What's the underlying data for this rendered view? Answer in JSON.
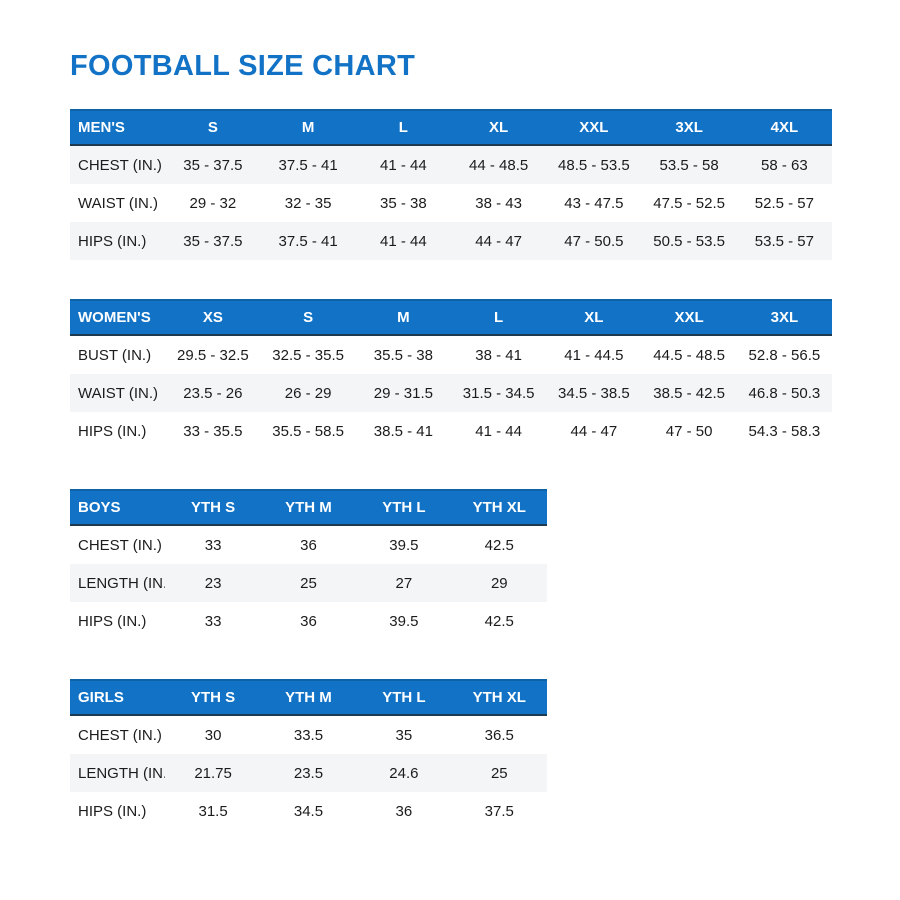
{
  "page": {
    "title": "FOOTBALL SIZE CHART"
  },
  "colors": {
    "accent": "#1273C6",
    "header_text": "#FFFFFF",
    "header_edge_top": "#0D62A8",
    "header_edge_bottom": "#1E3A50",
    "row_alt": "#F4F5F6",
    "text": "#1C1C1E"
  },
  "tables": [
    {
      "id": "mens",
      "header": [
        "MEN'S",
        "S",
        "M",
        "L",
        "XL",
        "XXL",
        "3XL",
        "4XL"
      ],
      "shaded_rows": [
        0,
        2
      ],
      "rows": [
        [
          "CHEST (IN.)",
          "35 - 37.5",
          "37.5 - 41",
          "41 - 44",
          "44 - 48.5",
          "48.5 - 53.5",
          "53.5 - 58",
          "58 - 63"
        ],
        [
          "WAIST (IN.)",
          "29 - 32",
          "32 - 35",
          "35 - 38",
          "38 - 43",
          "43 - 47.5",
          "47.5 - 52.5",
          "52.5 - 57"
        ],
        [
          "HIPS (IN.)",
          "35 - 37.5",
          "37.5 - 41",
          "41 - 44",
          "44 - 47",
          "47 - 50.5",
          "50.5 - 53.5",
          "53.5 - 57"
        ]
      ]
    },
    {
      "id": "womens",
      "header": [
        "WOMEN'S",
        "XS",
        "S",
        "M",
        "L",
        "XL",
        "XXL",
        "3XL"
      ],
      "shaded_rows": [
        1
      ],
      "rows": [
        [
          "BUST (IN.)",
          "29.5 - 32.5",
          "32.5 - 35.5",
          "35.5 - 38",
          "38 - 41",
          "41 - 44.5",
          "44.5 - 48.5",
          "52.8 - 56.5"
        ],
        [
          "WAIST (IN.)",
          "23.5 - 26",
          "26 - 29",
          "29 - 31.5",
          "31.5 - 34.5",
          "34.5 - 38.5",
          "38.5 - 42.5",
          "46.8 - 50.3"
        ],
        [
          "HIPS (IN.)",
          "33 - 35.5",
          "35.5 - 58.5",
          "38.5 - 41",
          "41 - 44",
          "44 - 47",
          "47 - 50",
          "54.3 - 58.3"
        ]
      ]
    },
    {
      "id": "boys",
      "header": [
        "BOYS",
        "YTH S",
        "YTH M",
        "YTH L",
        "YTH XL"
      ],
      "shaded_rows": [
        1
      ],
      "rows": [
        [
          "CHEST (IN.)",
          "33",
          "36",
          "39.5",
          "42.5"
        ],
        [
          "LENGTH (IN.)",
          "23",
          "25",
          "27",
          "29"
        ],
        [
          "HIPS (IN.)",
          "33",
          "36",
          "39.5",
          "42.5"
        ]
      ]
    },
    {
      "id": "girls",
      "header": [
        "GIRLS",
        "YTH S",
        "YTH M",
        "YTH L",
        "YTH XL"
      ],
      "shaded_rows": [
        1
      ],
      "rows": [
        [
          "CHEST (IN.)",
          "30",
          "33.5",
          "35",
          "36.5"
        ],
        [
          "LENGTH (IN.)",
          "21.75",
          "23.5",
          "24.6",
          "25"
        ],
        [
          "HIPS (IN.)",
          "31.5",
          "34.5",
          "36",
          "37.5"
        ]
      ]
    }
  ]
}
